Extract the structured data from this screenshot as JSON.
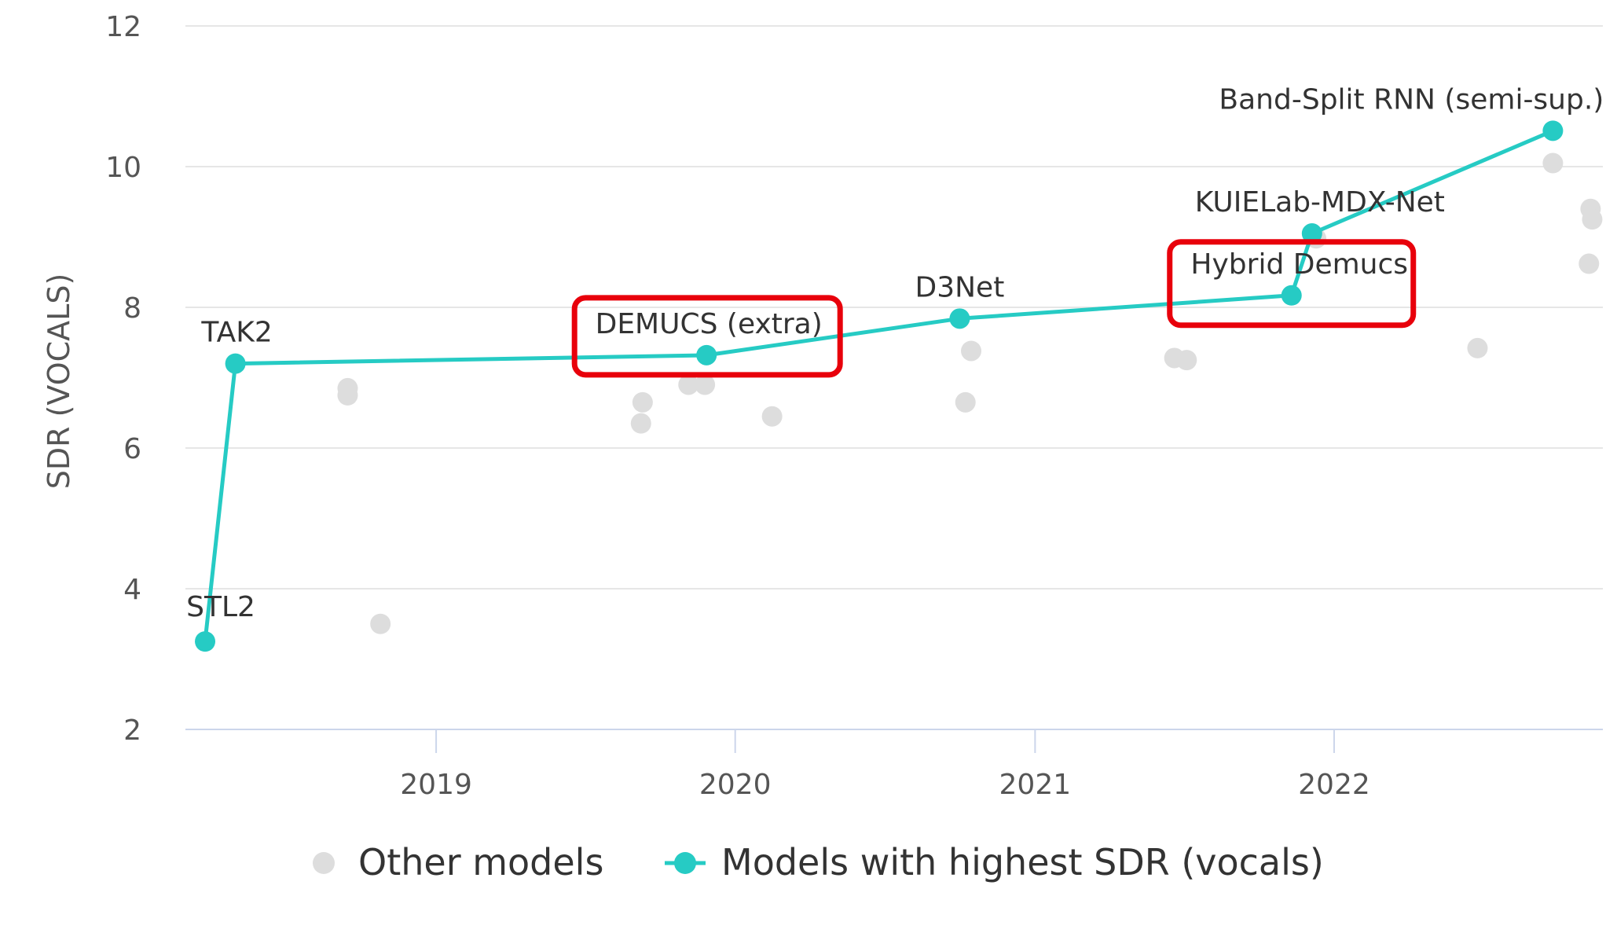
{
  "chart_data": {
    "type": "scatter",
    "title": "",
    "xlabel": "",
    "ylabel": "SDR (VOCALS)",
    "xlim": [
      "2018-03-01",
      "2022-11-25"
    ],
    "ylim": [
      2,
      12
    ],
    "x_ticks": [
      "2019",
      "2020",
      "2021",
      "2022"
    ],
    "y_ticks": [
      "2",
      "4",
      "6",
      "8",
      "10",
      "12"
    ],
    "grid": true,
    "legend_position": "bottom-center",
    "series": [
      {
        "name": "Other models",
        "type": "scatter",
        "color": "#dddddd",
        "points": [
          {
            "x": "2018-09-15",
            "y": 6.85
          },
          {
            "x": "2018-09-15",
            "y": 6.75
          },
          {
            "x": "2018-10-25",
            "y": 3.5
          },
          {
            "x": "2019-09-10",
            "y": 6.65
          },
          {
            "x": "2019-09-08",
            "y": 6.35
          },
          {
            "x": "2019-11-05",
            "y": 6.9
          },
          {
            "x": "2019-11-25",
            "y": 6.9
          },
          {
            "x": "2020-02-15",
            "y": 6.45
          },
          {
            "x": "2020-10-15",
            "y": 7.38
          },
          {
            "x": "2020-10-08",
            "y": 6.65
          },
          {
            "x": "2021-06-20",
            "y": 7.28
          },
          {
            "x": "2021-07-05",
            "y": 7.25
          },
          {
            "x": "2021-12-10",
            "y": 8.98
          },
          {
            "x": "2022-06-25",
            "y": 7.42
          },
          {
            "x": "2022-09-25",
            "y": 10.05
          },
          {
            "x": "2022-11-10",
            "y": 9.4
          },
          {
            "x": "2022-11-12",
            "y": 9.25
          },
          {
            "x": "2022-11-08",
            "y": 8.62
          }
        ]
      },
      {
        "name": "Models with highest SDR (vocals)",
        "type": "line",
        "color": "#26cbc4",
        "points": [
          {
            "x": "2018-03-25",
            "y": 3.25,
            "label": "STL2"
          },
          {
            "x": "2018-05-01",
            "y": 7.2,
            "label": "TAK2"
          },
          {
            "x": "2019-11-27",
            "y": 7.32,
            "label": "DEMUCS (extra)"
          },
          {
            "x": "2020-10-01",
            "y": 7.84,
            "label": "D3Net"
          },
          {
            "x": "2021-11-10",
            "y": 8.17,
            "label": "Hybrid Demucs"
          },
          {
            "x": "2021-12-05",
            "y": 9.05,
            "label": "KUIELab-MDX-Net"
          },
          {
            "x": "2022-09-25",
            "y": 10.51,
            "label": "Band-Split RNN (semi-sup.)"
          }
        ]
      }
    ],
    "highlighted": [
      "DEMUCS (extra)",
      "Hybrid Demucs"
    ],
    "highlight_color": "#e8000b"
  }
}
